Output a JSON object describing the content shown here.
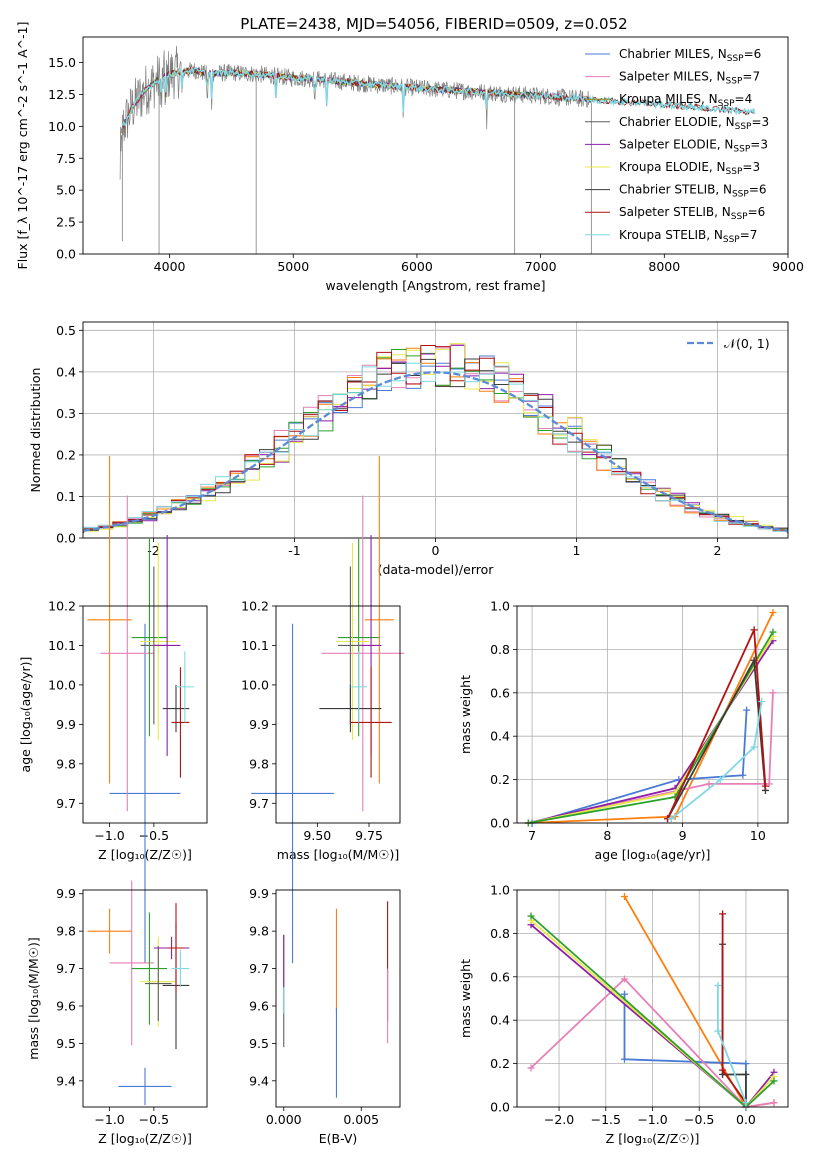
{
  "colors": {
    "Chabrier MILES": "#4a7ad6",
    "Salpeter MILES": "#e77fb8",
    "Kroupa MILES": "#8f8d12",
    "Chabrier ELODIE": "#5f5f5f",
    "Salpeter ELODIE": "#8d1fa8",
    "Kroupa ELODIE": "#e8e84a",
    "Chabrier STELIB": "#3b3b3b",
    "Salpeter STELIB": "#b31212",
    "Kroupa STELIB": "#7fd8e2",
    "orange": "#ff7f0e",
    "green": "#2ca02c",
    "normal": "#5b8ad8",
    "grid": "#b0b0b0"
  },
  "chart_data": [
    {
      "id": "spectrum",
      "type": "line",
      "title": "PLATE=2438, MJD=54056, FIBERID=0509, z=0.052",
      "xlabel": "wavelength [Angstrom, rest frame]",
      "ylabel": "Flux [f_λ 10^-17 erg cm^-2 s^-1 A^-1]",
      "xlim": [
        3300,
        9000
      ],
      "ylim": [
        0,
        17
      ],
      "xticks": [
        4000,
        5000,
        6000,
        7000,
        8000,
        9000
      ],
      "yticks": [
        0.0,
        2.5,
        5.0,
        7.5,
        10.0,
        12.5,
        15.0
      ],
      "grid": false,
      "legend_position": "top-right",
      "legend": [
        {
          "label": "Chabrier MILES, N",
          "sub": "SSP",
          "n": "=6"
        },
        {
          "label": "Salpeter MILES, N",
          "sub": "SSP",
          "n": "=7"
        },
        {
          "label": "Kroupa MILES, N",
          "sub": "SSP",
          "n": "=4"
        },
        {
          "label": "Chabrier ELODIE, N",
          "sub": "SSP",
          "n": "=3"
        },
        {
          "label": "Salpeter ELODIE, N",
          "sub": "SSP",
          "n": "=3"
        },
        {
          "label": "Kroupa ELODIE, N",
          "sub": "SSP",
          "n": "=3"
        },
        {
          "label": "Chabrier STELIB, N",
          "sub": "SSP",
          "n": "=6"
        },
        {
          "label": "Salpeter STELIB, N",
          "sub": "SSP",
          "n": "=6"
        },
        {
          "label": "Kroupa STELIB, N",
          "sub": "SSP",
          "n": "=7"
        }
      ],
      "continuum": {
        "x": [
          3600,
          3700,
          3800,
          3900,
          4000,
          4100,
          4200,
          4300,
          4500,
          4700,
          5000,
          5200,
          5500,
          6000,
          6500,
          7000,
          7400,
          8000,
          8500,
          8730
        ],
        "y": [
          9.5,
          11.5,
          12.8,
          13.6,
          14.1,
          14.3,
          14.4,
          14.1,
          14.2,
          14.1,
          13.8,
          13.7,
          13.4,
          13.0,
          12.7,
          12.4,
          12.1,
          11.7,
          11.3,
          11.1
        ]
      }
    },
    {
      "id": "residuals",
      "type": "step",
      "xlabel": "(data-model)/error",
      "ylabel": "Normed distribution",
      "xlim": [
        -2.5,
        2.5
      ],
      "ylim": [
        0,
        0.52
      ],
      "xticks": [
        -2,
        -1,
        0,
        1,
        2
      ],
      "yticks": [
        0.0,
        0.1,
        0.2,
        0.3,
        0.4,
        0.5
      ],
      "grid": true,
      "legend_position": "top-right",
      "normal_label": "𝒩(0, 1)"
    },
    {
      "id": "age_vs_Z",
      "type": "errorbar",
      "xlabel": "Z [log₁₀(Z/Z☉)]",
      "ylabel": "age [log₁₀(age/yr)]",
      "xlim": [
        -1.3,
        0.1
      ],
      "ylim": [
        9.65,
        10.2
      ],
      "xticks": [
        -1.0,
        -0.5
      ],
      "xticklabels": [
        "−1.0",
        "−0.5"
      ],
      "yticks": [
        9.7,
        9.8,
        9.9,
        10.0,
        10.1,
        10.2
      ],
      "points": [
        {
          "c": "orange",
          "x": -1.0,
          "y": 10.165,
          "xerr": 0.25,
          "yerr": 0.415
        },
        {
          "c": "Chabrier MILES",
          "x": -0.6,
          "y": 9.725,
          "xerr": 0.4,
          "yerr": 0.43
        },
        {
          "c": "Salpeter MILES",
          "x": -0.8,
          "y": 10.08,
          "xerr": 0.3,
          "yerr": 0.4
        },
        {
          "c": "green",
          "x": -0.55,
          "y": 10.12,
          "xerr": 0.2,
          "yerr": 0.25
        },
        {
          "c": "Kroupa ELODIE",
          "x": -0.45,
          "y": 10.11,
          "xerr": 0.2,
          "yerr": 0.25
        },
        {
          "c": "Chabrier ELODIE",
          "x": -0.5,
          "y": 10.1,
          "xerr": 0.15,
          "yerr": 0.2
        },
        {
          "c": "Salpeter ELODIE",
          "x": -0.35,
          "y": 10.1,
          "xerr": 0.15,
          "yerr": 0.28
        },
        {
          "c": "Chabrier STELIB",
          "x": -0.25,
          "y": 9.94,
          "xerr": 0.15,
          "yerr": 0.06
        },
        {
          "c": "Salpeter STELIB",
          "x": -0.2,
          "y": 9.905,
          "xerr": 0.1,
          "yerr": 0.14
        },
        {
          "c": "Kroupa STELIB",
          "x": -0.15,
          "y": 9.995,
          "xerr": 0.1,
          "yerr": 0.09
        }
      ]
    },
    {
      "id": "age_vs_mass",
      "type": "errorbar",
      "xlabel": "mass [log₁₀(M/M☉)]",
      "xlim": [
        9.3,
        9.9
      ],
      "ylim": [
        9.65,
        10.2
      ],
      "xticks": [
        9.5,
        9.75
      ],
      "xticklabels": [
        "9.50",
        "9.75"
      ],
      "yticks": [
        9.7,
        9.8,
        9.9,
        10.0,
        10.1,
        10.2
      ],
      "points": [
        {
          "c": "orange",
          "x": 9.8,
          "y": 10.165,
          "xerr": 0.07,
          "yerr": 0.415
        },
        {
          "c": "Chabrier MILES",
          "x": 9.38,
          "y": 9.725,
          "xerr": 0.2,
          "yerr": 0.43
        },
        {
          "c": "Salpeter MILES",
          "x": 9.72,
          "y": 10.08,
          "xerr": 0.2,
          "yerr": 0.4
        },
        {
          "c": "green",
          "x": 9.7,
          "y": 10.12,
          "xerr": 0.1,
          "yerr": 0.25
        },
        {
          "c": "Kroupa ELODIE",
          "x": 9.67,
          "y": 10.11,
          "xerr": 0.08,
          "yerr": 0.25
        },
        {
          "c": "Chabrier ELODIE",
          "x": 9.66,
          "y": 10.1,
          "xerr": 0.06,
          "yerr": 0.2
        },
        {
          "c": "Salpeter ELODIE",
          "x": 9.76,
          "y": 10.1,
          "xerr": 0.05,
          "yerr": 0.28
        },
        {
          "c": "Chabrier STELIB",
          "x": 9.66,
          "y": 9.94,
          "xerr": 0.15,
          "yerr": 0.06
        },
        {
          "c": "Salpeter STELIB",
          "x": 9.76,
          "y": 9.905,
          "xerr": 0.1,
          "yerr": 0.14
        },
        {
          "c": "Kroupa STELIB",
          "x": 9.7,
          "y": 9.995,
          "xerr": 0.04,
          "yerr": 0.09
        }
      ]
    },
    {
      "id": "weight_vs_age",
      "type": "line",
      "xlabel": "age [log₁₀(age/yr)]",
      "ylabel": "mass weight",
      "xlim": [
        6.8,
        10.4
      ],
      "ylim": [
        0,
        1
      ],
      "xticks": [
        7,
        8,
        9,
        10
      ],
      "yticks": [
        0.0,
        0.2,
        0.4,
        0.6,
        0.8,
        1.0
      ],
      "grid": true,
      "series": [
        {
          "c": "orange",
          "x": [
            6.95,
            8.9,
            10.2
          ],
          "y": [
            0.0,
            0.03,
            0.97
          ]
        },
        {
          "c": "Chabrier MILES",
          "x": [
            7.0,
            8.95,
            9.8,
            9.85
          ],
          "y": [
            0.0,
            0.2,
            0.22,
            0.52
          ]
        },
        {
          "c": "Salpeter MILES",
          "x": [
            6.95,
            9.35,
            10.15,
            10.2
          ],
          "y": [
            0.0,
            0.18,
            0.18,
            0.6
          ]
        },
        {
          "c": "Salpeter ELODIE",
          "x": [
            6.95,
            8.9,
            10.2
          ],
          "y": [
            0.0,
            0.16,
            0.84
          ]
        },
        {
          "c": "Kroupa ELODIE",
          "x": [
            6.95,
            8.9,
            10.2
          ],
          "y": [
            0.0,
            0.14,
            0.86
          ]
        },
        {
          "c": "green",
          "x": [
            6.95,
            8.9,
            10.2
          ],
          "y": [
            0.0,
            0.12,
            0.88
          ]
        },
        {
          "c": "Chabrier STELIB",
          "x": [
            8.8,
            9.95,
            10.1
          ],
          "y": [
            0.02,
            0.75,
            0.15
          ]
        },
        {
          "c": "Salpeter STELIB",
          "x": [
            8.8,
            9.95,
            10.1
          ],
          "y": [
            0.02,
            0.89,
            0.17
          ]
        },
        {
          "c": "Kroupa STELIB",
          "x": [
            8.85,
            9.5,
            9.95,
            10.05
          ],
          "y": [
            0.02,
            0.2,
            0.35,
            0.56
          ]
        }
      ]
    },
    {
      "id": "mass_vs_Z",
      "type": "errorbar",
      "xlabel": "Z [log₁₀(Z/Z☉)]",
      "ylabel": "mass [log₁₀(M/M☉)]",
      "xlim": [
        -1.3,
        0.1
      ],
      "ylim": [
        9.33,
        9.91
      ],
      "xticks": [
        -1.0,
        -0.5
      ],
      "xticklabels": [
        "−1.0",
        "−0.5"
      ],
      "yticks": [
        9.4,
        9.5,
        9.6,
        9.7,
        9.8,
        9.9
      ],
      "points": [
        {
          "c": "orange",
          "x": -1.0,
          "y": 9.8,
          "xerr": 0.25,
          "yerr": 0.06
        },
        {
          "c": "Chabrier MILES",
          "x": -0.6,
          "y": 9.385,
          "xerr": 0.3,
          "yerr": 0.05
        },
        {
          "c": "Salpeter MILES",
          "x": -0.75,
          "y": 9.715,
          "xerr": 0.25,
          "yerr": 0.22
        },
        {
          "c": "green",
          "x": -0.55,
          "y": 9.7,
          "xerr": 0.2,
          "yerr": 0.15
        },
        {
          "c": "Kroupa ELODIE",
          "x": -0.45,
          "y": 9.665,
          "xerr": 0.2,
          "yerr": 0.12
        },
        {
          "c": "Chabrier ELODIE",
          "x": -0.45,
          "y": 9.66,
          "xerr": 0.15,
          "yerr": 0.1
        },
        {
          "c": "Salpeter ELODIE",
          "x": -0.3,
          "y": 9.755,
          "xerr": 0.2,
          "yerr": 0.03
        },
        {
          "c": "Chabrier STELIB",
          "x": -0.25,
          "y": 9.655,
          "xerr": 0.15,
          "yerr": 0.17
        },
        {
          "c": "Salpeter STELIB",
          "x": -0.25,
          "y": 9.755,
          "xerr": 0.1,
          "yerr": 0.12
        },
        {
          "c": "Kroupa STELIB",
          "x": -0.2,
          "y": 9.7,
          "xerr": 0.1,
          "yerr": 0.05
        }
      ]
    },
    {
      "id": "mass_vs_EBV",
      "type": "errorbar",
      "xlabel": "E(B-V)",
      "xlim": [
        -0.0005,
        0.0075
      ],
      "ylim": [
        9.33,
        9.91
      ],
      "xticks": [
        0.0,
        0.005
      ],
      "xticklabels": [
        "0.000",
        "0.005"
      ],
      "yticks": [
        9.4,
        9.5,
        9.6,
        9.7,
        9.8,
        9.9
      ],
      "points": [
        {
          "c": "Chabrier ELODIE",
          "x": 0.0,
          "y": 9.64,
          "xerr": 0,
          "yerr": 0.15
        },
        {
          "c": "Kroupa STELIB",
          "x": 0.0,
          "y": 9.68,
          "xerr": 0,
          "yerr": 0.1
        },
        {
          "c": "Salpeter ELODIE",
          "x": 0.0,
          "y": 9.72,
          "xerr": 0,
          "yerr": 0.07
        },
        {
          "c": "orange",
          "x": 0.0034,
          "y": 9.72,
          "xerr": 0,
          "yerr": 0.14
        },
        {
          "c": "Chabrier MILES",
          "x": 0.0034,
          "y": 9.475,
          "xerr": 0,
          "yerr": 0.12
        },
        {
          "c": "Salpeter STELIB",
          "x": 0.0067,
          "y": 9.72,
          "xerr": 0,
          "yerr": 0.16
        },
        {
          "c": "Salpeter MILES",
          "x": 0.0067,
          "y": 9.6,
          "xerr": 0,
          "yerr": 0.1
        }
      ]
    },
    {
      "id": "weight_vs_Z",
      "type": "line",
      "xlabel": "Z [log₁₀(Z/Z☉)]",
      "ylabel": "mass weight",
      "xlim": [
        -2.45,
        0.45
      ],
      "ylim": [
        0,
        1
      ],
      "xticks": [
        -2.0,
        -1.5,
        -1.0,
        -0.5,
        0.0
      ],
      "xticklabels": [
        "−2.0",
        "−1.5",
        "−1.0",
        "−0.5",
        "0.0"
      ],
      "yticks": [
        0.0,
        0.2,
        0.4,
        0.6,
        0.8,
        1.0
      ],
      "grid": true,
      "series": [
        {
          "c": "orange",
          "x": [
            -1.3,
            0.0,
            0.3
          ],
          "y": [
            0.97,
            0.0,
            0.02
          ]
        },
        {
          "c": "Chabrier MILES",
          "x": [
            -1.3,
            -1.3,
            0.0,
            0.0
          ],
          "y": [
            0.52,
            0.22,
            0.2,
            0.0
          ]
        },
        {
          "c": "Salpeter MILES",
          "x": [
            -2.3,
            -1.3,
            0.0,
            0.3
          ],
          "y": [
            0.18,
            0.59,
            0.0,
            0.02
          ]
        },
        {
          "c": "Salpeter ELODIE",
          "x": [
            -2.3,
            0.0,
            0.3
          ],
          "y": [
            0.84,
            0.0,
            0.16
          ]
        },
        {
          "c": "Kroupa ELODIE",
          "x": [
            -2.3,
            0.0,
            0.3
          ],
          "y": [
            0.86,
            0.0,
            0.14
          ]
        },
        {
          "c": "green",
          "x": [
            -2.3,
            0.0,
            0.3
          ],
          "y": [
            0.88,
            0.0,
            0.12
          ]
        },
        {
          "c": "Chabrier STELIB",
          "x": [
            -0.25,
            -0.25,
            0.0,
            0.0
          ],
          "y": [
            0.75,
            0.15,
            0.15,
            0.02
          ]
        },
        {
          "c": "Salpeter STELIB",
          "x": [
            -0.25,
            -0.25,
            0.0,
            0.0
          ],
          "y": [
            0.89,
            0.17,
            0.02,
            0.0
          ]
        },
        {
          "c": "Kroupa STELIB",
          "x": [
            -0.3,
            -0.3,
            0.0,
            0.0
          ],
          "y": [
            0.56,
            0.35,
            0.02,
            0.0
          ]
        }
      ]
    }
  ]
}
